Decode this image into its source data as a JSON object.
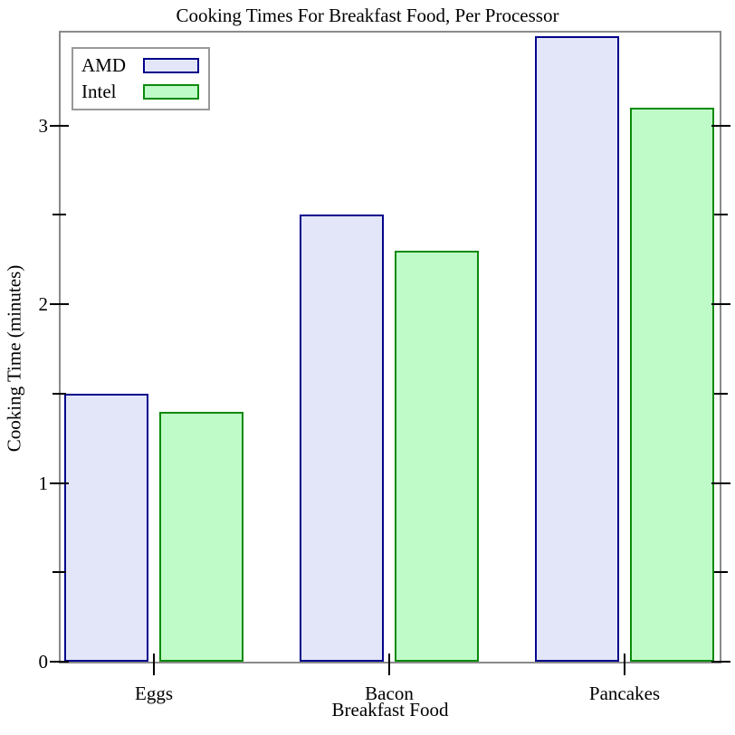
{
  "chart_data": {
    "type": "bar",
    "title": "Cooking Times For Breakfast Food, Per Processor",
    "xlabel": "Breakfast Food",
    "ylabel": "Cooking Time (minutes)",
    "categories": [
      "Eggs",
      "Bacon",
      "Pancakes"
    ],
    "series": [
      {
        "name": "AMD",
        "values": [
          1.5,
          2.5,
          3.5
        ],
        "fill": "#e3e6f9",
        "border": "#00008b"
      },
      {
        "name": "Intel",
        "values": [
          1.4,
          2.3,
          3.1
        ],
        "fill": "#bffbc8",
        "border": "#0b8a0b"
      }
    ],
    "ylim": [
      0,
      3.52
    ],
    "yticks_major": [
      0,
      1,
      2,
      3
    ],
    "yticks_minor": [
      0.5,
      1.5,
      2.5
    ],
    "legend_position": "top-left",
    "grid": false,
    "colors": {
      "frame": "#8a8a8a",
      "tick": "#000000",
      "text": "#000000",
      "background": "#ffffff"
    }
  },
  "legend": {
    "entries": [
      "AMD",
      "Intel"
    ]
  }
}
